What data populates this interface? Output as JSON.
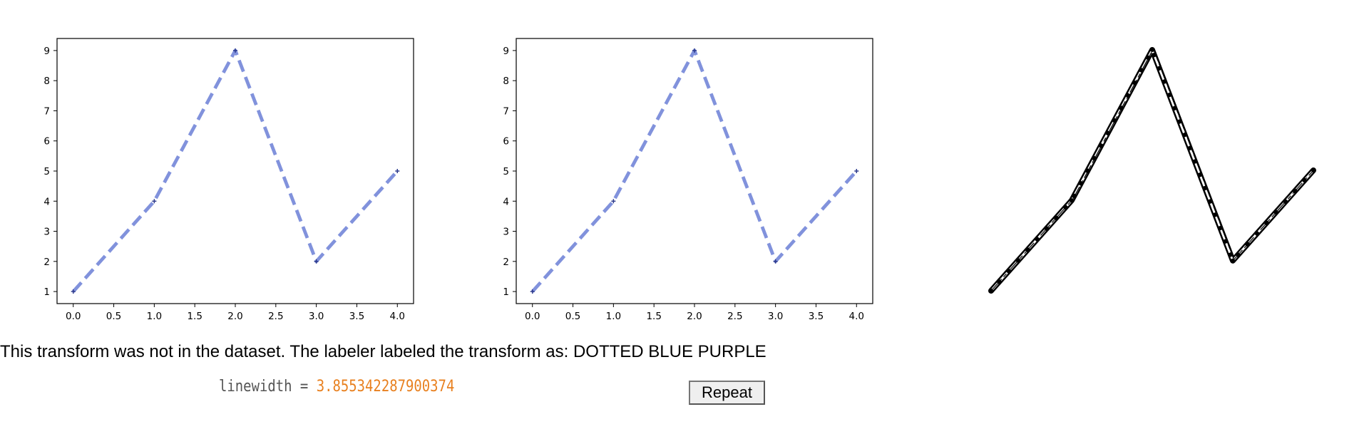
{
  "chart_data": [
    {
      "type": "line",
      "x": [
        0,
        1,
        2,
        3,
        4
      ],
      "y": [
        1,
        4,
        9,
        2,
        5
      ],
      "xticks": [
        "0.0",
        "0.5",
        "1.0",
        "1.5",
        "2.0",
        "2.5",
        "3.0",
        "3.5",
        "4.0"
      ],
      "yticks": [
        "1",
        "2",
        "3",
        "4",
        "5",
        "6",
        "7",
        "8",
        "9"
      ],
      "xlim": [
        -0.2,
        4.2
      ],
      "ylim": [
        0.6,
        9.4
      ],
      "line_color": "#8192dc",
      "line_style": "dashed",
      "marker_color": "#2d3a8c",
      "grid": false,
      "title": "",
      "xlabel": "",
      "ylabel": ""
    },
    {
      "type": "line",
      "x": [
        0,
        1,
        2,
        3,
        4
      ],
      "y": [
        1,
        4,
        9,
        2,
        5
      ],
      "xticks": [
        "0.0",
        "0.5",
        "1.0",
        "1.5",
        "2.0",
        "2.5",
        "3.0",
        "3.5",
        "4.0"
      ],
      "yticks": [
        "1",
        "2",
        "3",
        "4",
        "5",
        "6",
        "7",
        "8",
        "9"
      ],
      "xlim": [
        -0.2,
        4.2
      ],
      "ylim": [
        0.6,
        9.4
      ],
      "line_color": "#8192dc",
      "line_style": "dashed",
      "marker_color": "#2d3a8c",
      "grid": false,
      "title": "",
      "xlabel": "",
      "ylabel": ""
    },
    {
      "type": "line",
      "x": [
        0,
        1,
        2,
        3,
        4
      ],
      "y": [
        1,
        4,
        9,
        2,
        5
      ],
      "line_color": "#000000",
      "line_style": "sketched-dashed",
      "axes_visible": false
    }
  ],
  "message": "This transform was not in the dataset. The labeler labeled the transform as: DOTTED BLUE PURPLE",
  "code": {
    "variable": "linewidth = ",
    "value": "3.855342287900374"
  },
  "repeat_label": "Repeat"
}
